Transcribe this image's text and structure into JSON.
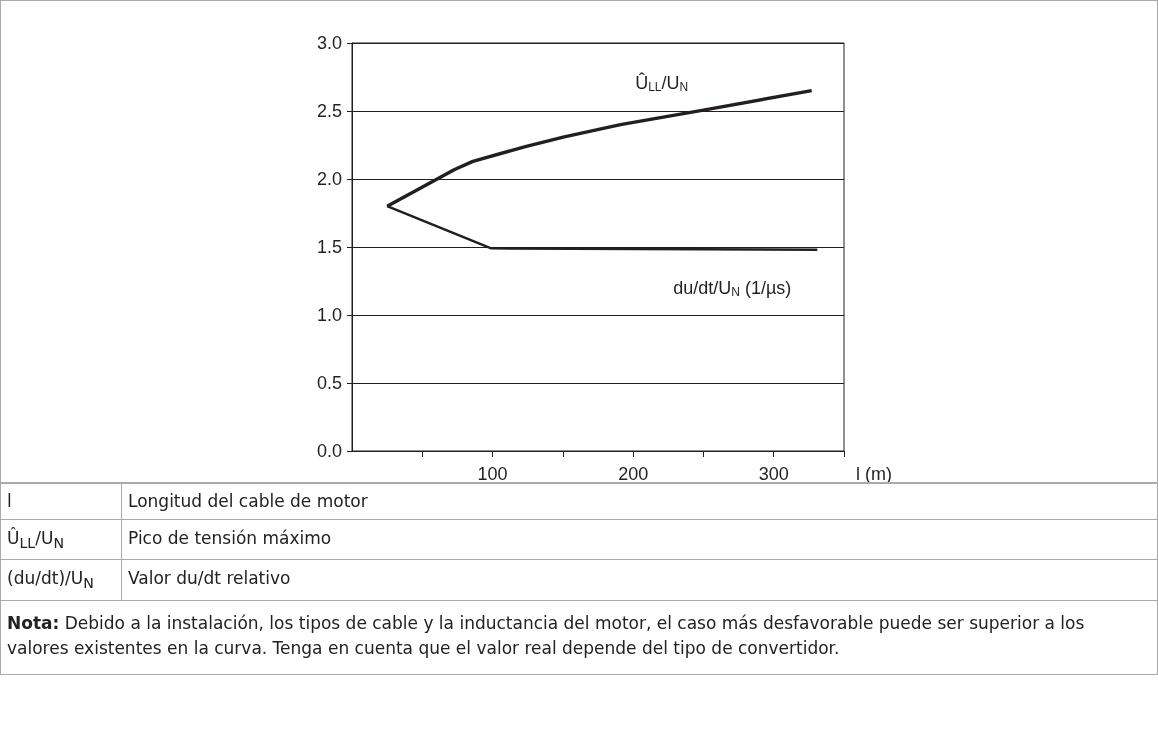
{
  "chart_data": {
    "type": "line",
    "xlabel": "l (m)",
    "series": [
      {
        "name": "Û$_{LL}$/U$_{N}$",
        "color": "#231f20",
        "x": [
          25,
          73,
          86,
          124,
          151,
          191,
          252,
          327
        ],
        "values": [
          1.8,
          2.07,
          2.13,
          2.24,
          2.31,
          2.4,
          2.51,
          2.65
        ]
      },
      {
        "name": "du/dt/U$_{N}$ (1/µs)",
        "color": "#231f20",
        "x": [
          25,
          99,
          331
        ],
        "values": [
          1.8,
          1.49,
          1.48
        ]
      }
    ],
    "xlim": [
      0,
      350
    ],
    "xticks": [
      {
        "value": 50,
        "label": null
      },
      100,
      {
        "value": 150,
        "label": null
      },
      200,
      {
        "value": 250,
        "label": null
      },
      300,
      {
        "value": 350,
        "label": null
      }
    ],
    "ylim": [
      0,
      3
    ],
    "yticks": [
      {
        "value": 0,
        "label": "0.0"
      },
      {
        "value": 0.5,
        "label": "0.5"
      },
      {
        "value": 1,
        "label": "1.0"
      },
      {
        "value": 1.5,
        "label": "1.5"
      },
      {
        "value": 2,
        "label": "2.0"
      },
      {
        "value": 2.5,
        "label": "2.5"
      },
      {
        "value": 3,
        "label": "3.0"
      }
    ],
    "grid": "y",
    "legend": false,
    "marker": "none",
    "line_style": "solid",
    "annotations": [
      "l",
      "Longitud del cable de motor",
      "Û$_{LL}$/U$_{N}$",
      "Pico de tensión máximo",
      "(du/dt)/U$_{N}$",
      "Valor du/dt relativo",
      "Nota: Debido a la instalación, los tipos de cable y la inductancia del motor, el caso más desfavorable puede ser superior a los valores existentes en la curva. Tenga en cuenta que el valor real depende del tipo de convertidor."
    ]
  }
}
